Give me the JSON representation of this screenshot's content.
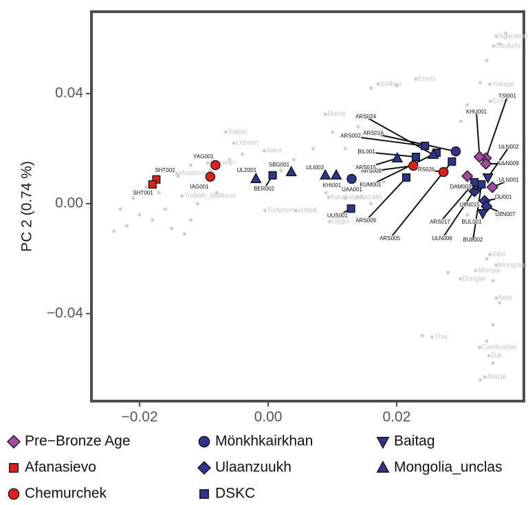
{
  "chart_data": {
    "type": "scatter",
    "ylabel": "PC 2 (0.74 %)",
    "xlim": [
      -0.0275,
      0.0398
    ],
    "ylim": [
      -0.0718,
      0.0698
    ],
    "xticks": [
      {
        "value": -0.02,
        "label": "−0.02"
      },
      {
        "value": 0,
        "label": "0.00"
      },
      {
        "value": 0.02,
        "label": "0.02"
      }
    ],
    "yticks": [
      {
        "value": -0.04,
        "label": "−0.04"
      },
      {
        "value": 0,
        "label": "0.00"
      },
      {
        "value": 0.04,
        "label": "0.04"
      }
    ],
    "reference_color": "#cfcfcf",
    "reference_points": {
      "x": [
        -0.024,
        -0.022,
        -0.02,
        -0.021,
        -0.019,
        -0.017,
        -0.016,
        -0.015,
        -0.013,
        -0.012,
        -0.011,
        -0.01,
        -0.009,
        -0.012,
        -0.014,
        -0.018,
        -0.023,
        -0.008,
        -0.006,
        -0.004,
        0.002,
        0.004,
        0.007,
        0.01,
        0.012,
        0.015,
        0.009,
        0.012,
        0.016,
        0.018,
        0.014,
        0.016,
        0.02,
        0.03,
        0.031,
        0.033,
        0.034,
        0.036,
        0.037,
        0.031,
        0.032,
        0.034,
        0.035,
        0.036,
        0.035,
        0.034,
        0.035,
        0.033,
        0.027,
        0.028,
        0.024
      ],
      "y": [
        -0.01,
        -0.008,
        -0.004,
        0.002,
        0.006,
        0.004,
        -0.002,
        -0.009,
        -0.011,
        -0.006,
        0.0,
        0.006,
        0.012,
        0.014,
        0.01,
        -0.006,
        -0.002,
        0.004,
        0.016,
        0.018,
        0.012,
        0.016,
        0.02,
        0.026,
        0.02,
        0.014,
        0.004,
        0.002,
        0.0,
        0.008,
        0.028,
        0.042,
        0.043,
        0.03,
        0.036,
        0.044,
        0.052,
        0.058,
        0.062,
        -0.004,
        -0.012,
        -0.02,
        -0.028,
        -0.036,
        -0.044,
        -0.05,
        -0.058,
        -0.064,
        -0.012,
        -0.025,
        -0.048
      ]
    },
    "reference_populations": {
      "names": [
        "Nganasan",
        "Chukchi",
        "Yukagir",
        "Even",
        "Enets",
        "Selkup",
        "Mansi",
        "Aleut",
        "Saami",
        "Udmurt",
        "Russian",
        "Mordovian",
        "Turkish_Balikesir",
        "Turkmen",
        "Uzbek",
        "Karakalpak",
        "Kazakh",
        "Uygur",
        "Xibo",
        "Mongola",
        "Sherpa",
        "Dungan",
        "Naxi",
        "Thai",
        "Cambodian",
        "Dai",
        "Atayal"
      ],
      "x": [
        0.0355,
        0.0351,
        0.0345,
        0.0346,
        0.023,
        0.0171,
        0.0089,
        -0.0006,
        -0.0066,
        -0.0053,
        -0.0094,
        -0.0142,
        -0.0134,
        -0.0005,
        0.0043,
        0.0094,
        0.0139,
        0.0096,
        0.0345,
        0.0355,
        0.0323,
        0.0299,
        0.0355,
        0.0255,
        0.0329,
        0.0344,
        0.0337
      ],
      "y": [
        0.0608,
        0.0573,
        0.0435,
        0.0373,
        0.0453,
        0.0435,
        0.0325,
        0.0193,
        0.026,
        0.022,
        0.0148,
        0.011,
        0.0028,
        -0.0025,
        -0.0025,
        0.0023,
        0.0023,
        -0.0065,
        -0.0185,
        -0.0223,
        -0.0243,
        -0.0273,
        -0.0343,
        -0.0485,
        -0.0523,
        -0.0553,
        -0.063
      ]
    },
    "series": [
      {
        "name": "Pre−Bronze Age",
        "color": "#a04ba0",
        "marker": "diamond",
        "x": [
          0.0339,
          0.0329,
          0.0339,
          0.0349,
          0.031
        ],
        "y": [
          0.0165,
          0.017,
          0.0145,
          0.006,
          0.01
        ],
        "labels": [
          "TSI001",
          "KHU001",
          "ULN009",
          "ULN001",
          "DAM003"
        ]
      },
      {
        "name": "Afanasievo",
        "color": "#e0201e",
        "marker": "square",
        "x": [
          -0.0174,
          -0.018
        ],
        "y": [
          0.0088,
          0.007
        ],
        "labels": [
          "SHT002",
          "SHT001"
        ]
      },
      {
        "name": "Chemurchek",
        "color": "#e0201e",
        "marker": "circle",
        "x": [
          -0.0082,
          -0.009,
          0.0226,
          0.0273
        ],
        "y": [
          0.014,
          0.0098,
          0.0138,
          0.0115
        ],
        "labels": [
          "YAG001",
          "IAG001",
          "ARS008",
          "RS026"
        ]
      },
      {
        "name": "Mönkhkairkhan",
        "color": "#2e3487",
        "marker": "circle",
        "x": [
          0.013,
          0.0292
        ],
        "y": [
          0.009,
          0.019
        ],
        "labels": [
          "UAA001",
          "ARS016"
        ]
      },
      {
        "name": "Ulaanzuukh",
        "color": "#2e3487",
        "marker": "diamond",
        "x": [
          0.0337,
          0.034,
          0.0321
        ],
        "y": [
          0.001,
          -0.001,
          0.0045
        ],
        "labels": [
          "OU001",
          "ULN007",
          "ULN015"
        ]
      },
      {
        "name": "DSKC",
        "color": "#2e3487",
        "marker": "square",
        "x": [
          0.0007,
          0.0129,
          0.0215,
          0.0244,
          0.023,
          0.0262,
          0.0286,
          0.0326,
          0.0332,
          0.0321
        ],
        "y": [
          0.0103,
          -0.0018,
          0.0095,
          0.021,
          0.017,
          0.0185,
          0.0153,
          0.0065,
          0.007,
          0.0078
        ],
        "labels": [
          "BER002",
          "UUS001",
          "ARS009",
          "ARS002",
          "BIL001",
          "KUM001",
          "ARS005",
          "ULN006",
          "BUL002",
          "ARS017"
        ]
      },
      {
        "name": "Baitag",
        "color": "#2e3487",
        "marker": "triangle-down",
        "x": [
          0.0342,
          0.0334
        ],
        "y": [
          0.0095,
          -0.0035
        ],
        "labels": [
          "ULN002",
          "BUL001"
        ]
      },
      {
        "name": "Mongolia_unclas",
        "color": "#2e3487",
        "marker": "triangle-up",
        "x": [
          -0.0019,
          0.0036,
          0.0089,
          0.0106,
          0.0201,
          0.0257
        ],
        "y": [
          0.009,
          0.0115,
          0.0103,
          0.0103,
          0.0165,
          0.0178
        ],
        "labels": [
          "ULZ001",
          "SBG001",
          "ULI003",
          "KHI001",
          "ARS015",
          "ARS024"
        ]
      }
    ]
  }
}
